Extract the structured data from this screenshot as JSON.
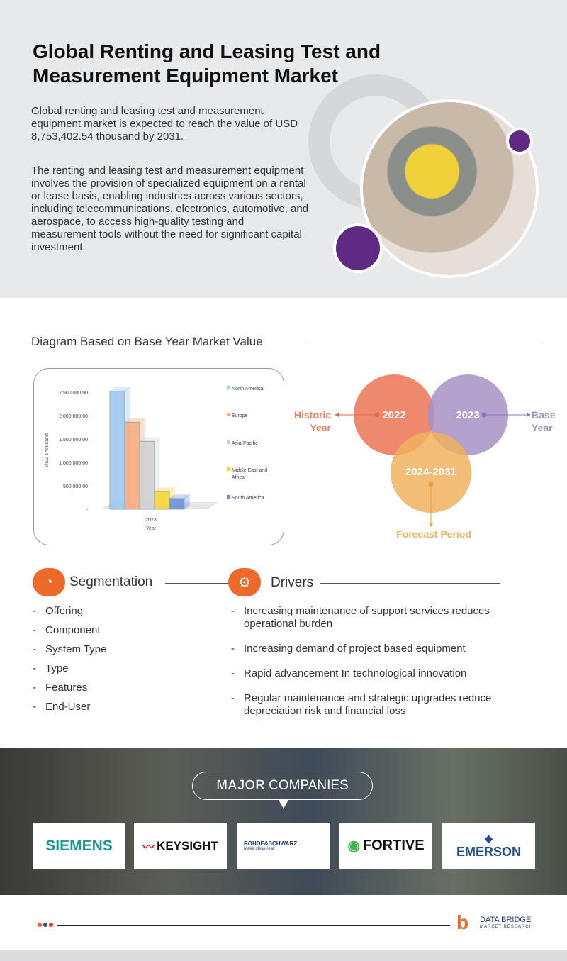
{
  "header": {
    "title": "Global Renting and Leasing Test and Measurement Equipment Market",
    "summary": "Global renting and leasing test and measurement equipment market is expected to reach the value of USD 8,753,402.54 thousand by 2031.",
    "description": "The renting and leasing test and measurement equipment involves the provision of specialized equipment on a rental or lease basis, enabling industries across various sectors, including telecommunications, electronics, automotive, and aerospace, to access high-quality testing and measurement tools without the need for significant capital investment."
  },
  "diagram": {
    "heading": "Diagram Based on Base Year Market Value"
  },
  "chart_data": {
    "type": "bar",
    "xlabel": "Year",
    "ylabel": "USD Thousand",
    "categories": [
      "2023"
    ],
    "yticks": [
      "-",
      "500,000.00",
      "1,000,000.00",
      "1,500,000.00",
      "2,000,000.00",
      "2,500,000.00"
    ],
    "ylim": [
      0,
      2500000
    ],
    "legend": "right",
    "grid": false,
    "series": [
      {
        "name": "North America",
        "values": [
          2520000
        ],
        "color": "#9cc8f0"
      },
      {
        "name": "Europe",
        "values": [
          1860000
        ],
        "color": "#f7ac80"
      },
      {
        "name": "Asia-Pacific",
        "values": [
          1450000
        ],
        "color": "#d0d0d0"
      },
      {
        "name": "Middle East and Africa",
        "values": [
          380000
        ],
        "color": "#f8d530"
      },
      {
        "name": "South America",
        "values": [
          230000
        ],
        "color": "#6f8fd8"
      }
    ]
  },
  "venn": {
    "historic": {
      "year": "2022",
      "label1": "Historic",
      "label2": "Year",
      "color": "#ee7f62"
    },
    "base": {
      "year": "2023",
      "label1": "Base",
      "label2": "Year",
      "color": "#a690c6"
    },
    "forecast": {
      "year": "2024-2031",
      "label": "Forecast Period",
      "color": "#f0b25e"
    }
  },
  "segmentation": {
    "title": "Segmentation",
    "items": [
      "Offering",
      "Component",
      "System Type",
      "Type",
      "Features",
      "End-User"
    ]
  },
  "drivers": {
    "title": "Drivers",
    "items": [
      "Increasing maintenance of support services reduces operational burden",
      "Increasing demand of project based equipment",
      "Rapid advancement In technological innovation",
      "Regular maintenance and strategic upgrades reduce depreciation risk and financial loss"
    ]
  },
  "companies": {
    "title_bold": "MAJOR",
    "title_rest": " COMPANIES",
    "logos": [
      "SIEMENS",
      "KEYSIGHT",
      "ROHDE&SCHWARZ",
      "FORTIVE",
      "EMERSON"
    ],
    "rs_tagline": "Make ideas real"
  },
  "footer": {
    "brand1": "DATA BRIDGE",
    "brand2": "MARKET RESEARCH"
  }
}
